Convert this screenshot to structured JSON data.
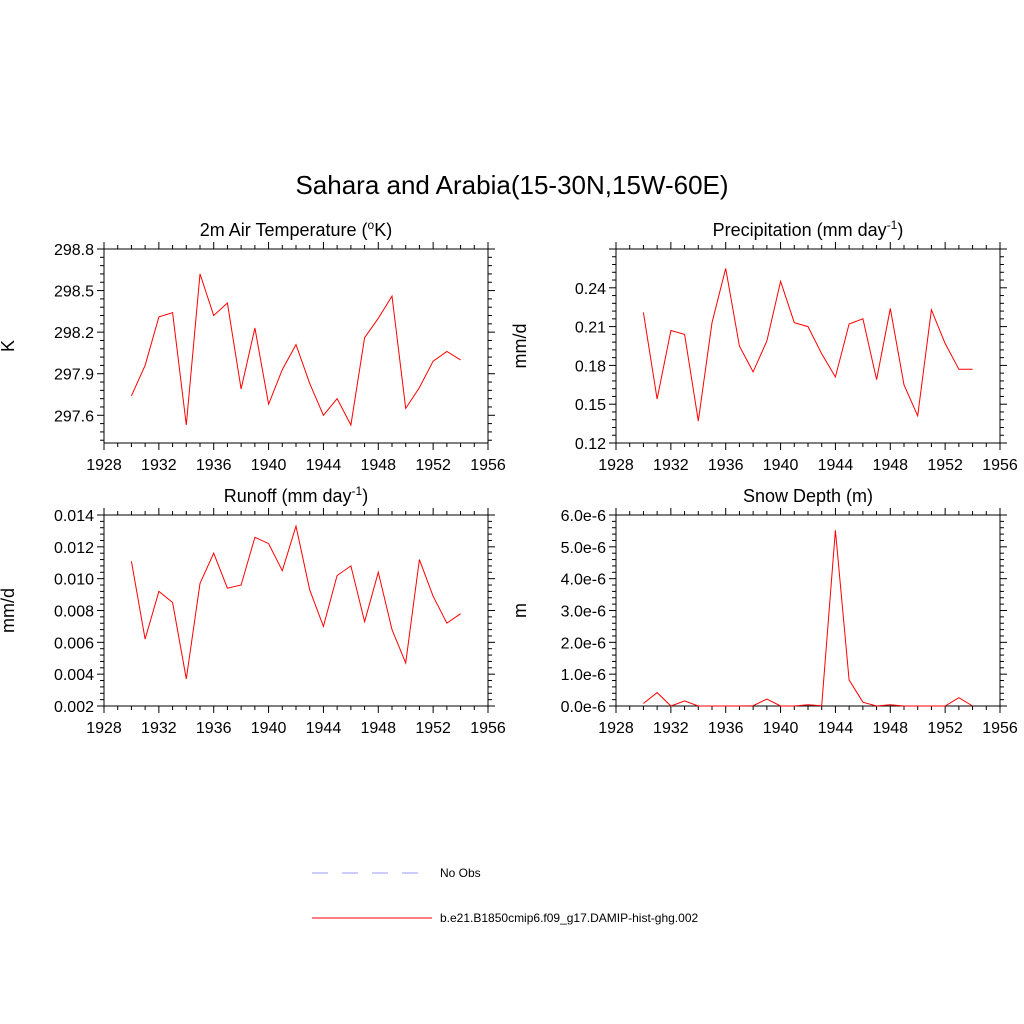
{
  "figure": {
    "title": "Sahara and Arabia(15-30N,15W-60E)"
  },
  "legend": [
    {
      "label": "No Obs",
      "color": "#9999ff",
      "dashed": true
    },
    {
      "label": "b.e21.B1850cmip6.f09_g17.DAMIP-hist-ghg.002",
      "color": "#ff0000",
      "dashed": false
    }
  ],
  "chart_data": [
    {
      "type": "line",
      "title": "2m Air Temperature",
      "title_unit": "K",
      "title_unit_sup": "o",
      "title_unit_sup_before": true,
      "ylabel": "K",
      "xlim": [
        1928,
        1956
      ],
      "ylim": [
        297.4,
        298.8
      ],
      "xticks": [
        1928,
        1932,
        1936,
        1940,
        1944,
        1948,
        1952,
        1956
      ],
      "xtick_labels": [
        "1928",
        "1932",
        "1936",
        "1940",
        "1944",
        "1948",
        "1952",
        "1956"
      ],
      "yticks": [
        297.6,
        297.9,
        298.2,
        298.5,
        298.8
      ],
      "ytick_labels": [
        "297.6",
        "297.9",
        "298.2",
        "298.5",
        "298.8"
      ],
      "series": [
        {
          "color": "#ff0000",
          "x": [
            1930,
            1931,
            1932,
            1933,
            1934,
            1935,
            1936,
            1937,
            1938,
            1939,
            1940,
            1941,
            1942,
            1943,
            1944,
            1945,
            1946,
            1947,
            1948,
            1949,
            1950,
            1951,
            1952,
            1953,
            1954
          ],
          "y": [
            297.74,
            297.96,
            298.31,
            298.34,
            297.53,
            298.62,
            298.32,
            298.41,
            297.79,
            298.23,
            297.68,
            297.93,
            298.11,
            297.83,
            297.6,
            297.72,
            297.53,
            298.16,
            298.3,
            298.46,
            297.65,
            297.8,
            297.99,
            298.06,
            298.0
          ]
        }
      ]
    },
    {
      "type": "line",
      "title": "Precipitation (mm day",
      "title_unit_sup": "-1",
      "title_suffix": ")",
      "ylabel": "mm/d",
      "xlim": [
        1928,
        1956
      ],
      "ylim": [
        0.12,
        0.27
      ],
      "xticks": [
        1928,
        1932,
        1936,
        1940,
        1944,
        1948,
        1952,
        1956
      ],
      "xtick_labels": [
        "1928",
        "1932",
        "1936",
        "1940",
        "1944",
        "1948",
        "1952",
        "1956"
      ],
      "yticks": [
        0.12,
        0.15,
        0.18,
        0.21,
        0.24
      ],
      "ytick_labels": [
        "0.12",
        "0.15",
        "0.18",
        "0.21",
        "0.24"
      ],
      "series": [
        {
          "color": "#ff0000",
          "x": [
            1930,
            1931,
            1932,
            1933,
            1934,
            1935,
            1936,
            1937,
            1938,
            1939,
            1940,
            1941,
            1942,
            1943,
            1944,
            1945,
            1946,
            1947,
            1948,
            1949,
            1950,
            1951,
            1952,
            1953,
            1954
          ],
          "y": [
            0.221,
            0.154,
            0.207,
            0.204,
            0.137,
            0.213,
            0.255,
            0.195,
            0.175,
            0.199,
            0.245,
            0.213,
            0.21,
            0.189,
            0.171,
            0.212,
            0.216,
            0.169,
            0.224,
            0.165,
            0.141,
            0.223,
            0.197,
            0.177,
            0.177
          ]
        }
      ]
    },
    {
      "type": "line",
      "title": "Runoff (mm day",
      "title_unit_sup": "-1",
      "title_suffix": ")",
      "ylabel": "mm/d",
      "xlim": [
        1928,
        1956
      ],
      "ylim": [
        0.002,
        0.014
      ],
      "xticks": [
        1928,
        1932,
        1936,
        1940,
        1944,
        1948,
        1952,
        1956
      ],
      "xtick_labels": [
        "1928",
        "1932",
        "1936",
        "1940",
        "1944",
        "1948",
        "1952",
        "1956"
      ],
      "yticks": [
        0.002,
        0.004,
        0.006,
        0.008,
        0.01,
        0.012,
        0.014
      ],
      "ytick_labels": [
        "0.002",
        "0.004",
        "0.006",
        "0.008",
        "0.010",
        "0.012",
        "0.014"
      ],
      "series": [
        {
          "color": "#ff0000",
          "x": [
            1930,
            1931,
            1932,
            1933,
            1934,
            1935,
            1936,
            1937,
            1938,
            1939,
            1940,
            1941,
            1942,
            1943,
            1944,
            1945,
            1946,
            1947,
            1948,
            1949,
            1950,
            1951,
            1952,
            1953,
            1954
          ],
          "y": [
            0.0111,
            0.0062,
            0.0092,
            0.0085,
            0.0037,
            0.0097,
            0.0116,
            0.0094,
            0.0096,
            0.0126,
            0.0122,
            0.0105,
            0.0133,
            0.0093,
            0.007,
            0.0102,
            0.0108,
            0.0073,
            0.0104,
            0.0068,
            0.0047,
            0.0112,
            0.0089,
            0.0072,
            0.0078
          ]
        }
      ]
    },
    {
      "type": "line",
      "title": "Snow Depth (m)",
      "ylabel": "m",
      "xlim": [
        1928,
        1956
      ],
      "ylim": [
        0,
        6e-06
      ],
      "xticks": [
        1928,
        1932,
        1936,
        1940,
        1944,
        1948,
        1952,
        1956
      ],
      "xtick_labels": [
        "1928",
        "1932",
        "1936",
        "1940",
        "1944",
        "1948",
        "1952",
        "1956"
      ],
      "yticks": [
        0,
        1e-06,
        2e-06,
        3e-06,
        4e-06,
        5e-06,
        6e-06
      ],
      "ytick_labels": [
        "0.0e-6",
        "1.0e-6",
        "2.0e-6",
        "3.0e-6",
        "4.0e-6",
        "5.0e-6",
        "6.0e-6"
      ],
      "series": [
        {
          "color": "#ff0000",
          "x": [
            1930,
            1931,
            1932,
            1933,
            1934,
            1935,
            1936,
            1937,
            1938,
            1939,
            1940,
            1941,
            1942,
            1943,
            1944,
            1945,
            1946,
            1947,
            1948,
            1949,
            1950,
            1951,
            1952,
            1953,
            1954
          ],
          "y": [
            8e-08,
            4.2e-07,
            0.0,
            1.6e-07,
            0.0,
            0.0,
            0.0,
            0.0,
            1e-08,
            2.2e-07,
            0.0,
            0.0,
            4e-08,
            1e-08,
            5.52e-06,
            8.2e-07,
            1.2e-07,
            0.0,
            4e-08,
            0.0,
            0.0,
            0.0,
            0.0,
            2.6e-07,
            0.0
          ]
        }
      ]
    }
  ]
}
